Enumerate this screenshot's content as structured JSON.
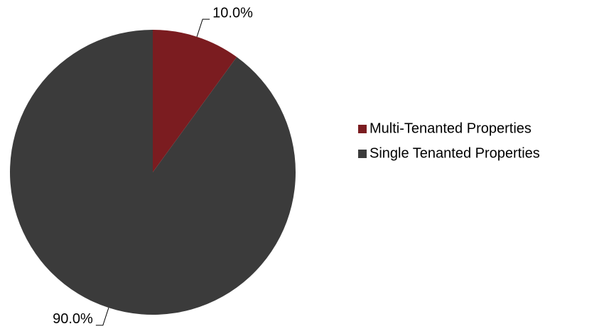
{
  "chart_data": {
    "type": "pie",
    "categories": [
      "Multi-Tenanted Properties",
      "Single Tenanted Properties"
    ],
    "values": [
      10,
      90
    ],
    "value_labels": [
      "10.0%",
      "90.0%"
    ],
    "colors": [
      "#7b1c20",
      "#3b3b3b"
    ],
    "legend": "right"
  }
}
